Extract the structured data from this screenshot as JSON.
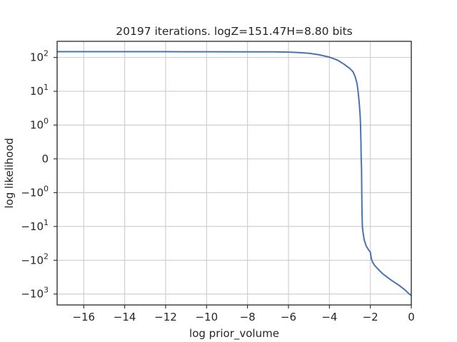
{
  "chart_data": {
    "type": "line",
    "title": "20197 iterations. logZ=151.47H=8.80 bits",
    "xlabel": "log prior_volume",
    "ylabel": "log likelihood",
    "xlim": [
      -17.3,
      0
    ],
    "ylim": [
      -2100,
      300
    ],
    "yscale": "symlog",
    "yscale_linthresh": 1,
    "grid": true,
    "line_color": "#4c72b0",
    "xticks": [
      {
        "value": -16,
        "label": "−16"
      },
      {
        "value": -14,
        "label": "−14"
      },
      {
        "value": -12,
        "label": "−12"
      },
      {
        "value": -10,
        "label": "−10"
      },
      {
        "value": -8,
        "label": "−8"
      },
      {
        "value": -6,
        "label": "−6"
      },
      {
        "value": -4,
        "label": "−4"
      },
      {
        "value": -2,
        "label": "−2"
      },
      {
        "value": 0,
        "label": "0"
      }
    ],
    "yticks": [
      {
        "value": 100,
        "base": "10",
        "exp": "2",
        "sign": ""
      },
      {
        "value": 10,
        "base": "10",
        "exp": "1",
        "sign": ""
      },
      {
        "value": 1,
        "base": "10",
        "exp": "0",
        "sign": ""
      },
      {
        "value": 0,
        "base": "0",
        "exp": "",
        "sign": ""
      },
      {
        "value": -1,
        "base": "10",
        "exp": "0",
        "sign": "−"
      },
      {
        "value": -10,
        "base": "10",
        "exp": "1",
        "sign": "−"
      },
      {
        "value": -100,
        "base": "10",
        "exp": "2",
        "sign": "−"
      },
      {
        "value": -1000,
        "base": "10",
        "exp": "3",
        "sign": "−"
      }
    ],
    "series": [
      {
        "x": [
          -17.3,
          -16,
          -14,
          -12,
          -10,
          -8,
          -7,
          -6.5,
          -6,
          -5.5,
          -5,
          -4.5,
          -4,
          -3.6,
          -3.3,
          -3.0,
          -2.85,
          -2.75,
          -2.65,
          -2.6,
          -2.55,
          -2.5,
          -2.48,
          -2.46,
          -2.45,
          -2.44,
          -2.43,
          -2.42,
          -2.41,
          -2.4,
          -2.39,
          -2.37,
          -2.35,
          -2.3,
          -2.2,
          -2.1,
          -2.0,
          -1.95,
          -1.9,
          -1.8,
          -1.6,
          -1.4,
          -1.0,
          -0.6,
          -0.3,
          -0.1,
          0
        ],
        "y": [
          148,
          148,
          148,
          148,
          147.5,
          147,
          146.5,
          146,
          144,
          140,
          133,
          120,
          102,
          83,
          64,
          47,
          38,
          28,
          17,
          10,
          5,
          2,
          1,
          0.5,
          0.1,
          -0.1,
          -0.3,
          -1,
          -3,
          -6,
          -10,
          -13,
          -16,
          -25,
          -38,
          -48,
          -58,
          -90,
          -110,
          -140,
          -190,
          -250,
          -380,
          -550,
          -760,
          -1000,
          -1100
        ]
      }
    ]
  }
}
